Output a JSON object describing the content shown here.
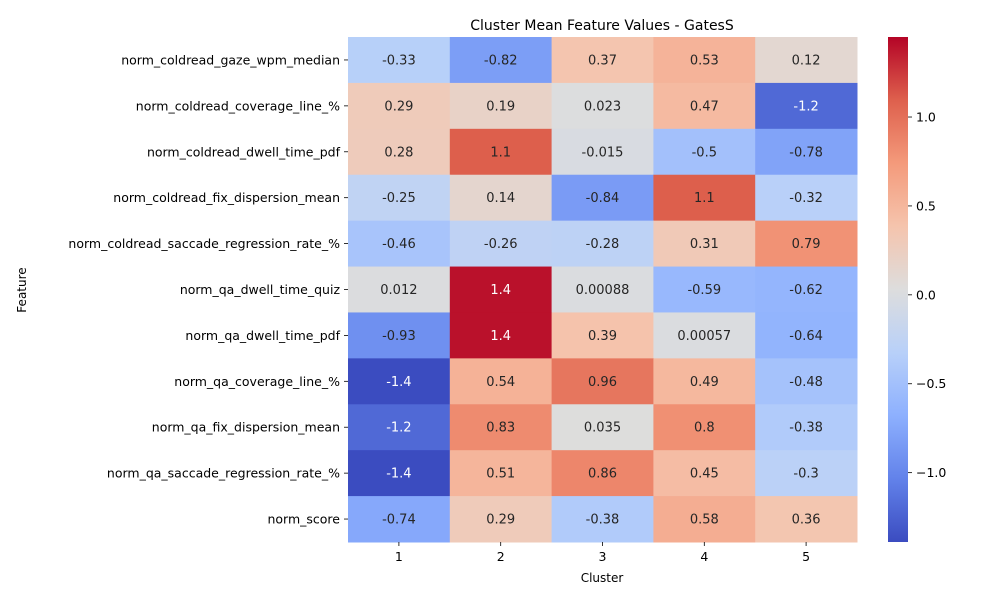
{
  "chart_data": {
    "type": "heatmap",
    "title": "Cluster Mean Feature Values - GatesS",
    "xlabel": "Cluster",
    "ylabel": "Feature",
    "x": [
      "1",
      "2",
      "3",
      "4",
      "5"
    ],
    "y": [
      "norm_coldread_gaze_wpm_median",
      "norm_coldread_coverage_line_%",
      "norm_coldread_dwell_time_pdf",
      "norm_coldread_fix_dispersion_mean",
      "norm_coldread_saccade_regression_rate_%",
      "norm_qa_dwell_time_quiz",
      "norm_qa_dwell_time_pdf",
      "norm_qa_coverage_line_%",
      "norm_qa_fix_dispersion_mean",
      "norm_qa_saccade_regression_rate_%",
      "norm_score"
    ],
    "values": [
      [
        -0.33,
        -0.82,
        0.37,
        0.53,
        0.12
      ],
      [
        0.29,
        0.19,
        0.023,
        0.47,
        -1.2
      ],
      [
        0.28,
        1.1,
        -0.015,
        -0.5,
        -0.78
      ],
      [
        -0.25,
        0.14,
        -0.84,
        1.1,
        -0.32
      ],
      [
        -0.46,
        -0.26,
        -0.28,
        0.31,
        0.79
      ],
      [
        0.012,
        1.4,
        0.00088,
        -0.59,
        -0.62
      ],
      [
        -0.93,
        1.4,
        0.39,
        0.00057,
        -0.64
      ],
      [
        -1.4,
        0.54,
        0.96,
        0.49,
        -0.48
      ],
      [
        -1.2,
        0.83,
        0.035,
        0.8,
        -0.38
      ],
      [
        -1.4,
        0.51,
        0.86,
        0.45,
        -0.3
      ],
      [
        -0.74,
        0.29,
        -0.38,
        0.58,
        0.36
      ]
    ],
    "cell_labels": [
      [
        "-0.33",
        "-0.82",
        "0.37",
        "0.53",
        "0.12"
      ],
      [
        "0.29",
        "0.19",
        "0.023",
        "0.47",
        "-1.2"
      ],
      [
        "0.28",
        "1.1",
        "-0.015",
        "-0.5",
        "-0.78"
      ],
      [
        "-0.25",
        "0.14",
        "-0.84",
        "1.1",
        "-0.32"
      ],
      [
        "-0.46",
        "-0.26",
        "-0.28",
        "0.31",
        "0.79"
      ],
      [
        "0.012",
        "1.4",
        "0.00088",
        "-0.59",
        "-0.62"
      ],
      [
        "-0.93",
        "1.4",
        "0.39",
        "0.00057",
        "-0.64"
      ],
      [
        "-1.4",
        "0.54",
        "0.96",
        "0.49",
        "-0.48"
      ],
      [
        "-1.2",
        "0.83",
        "0.035",
        "0.8",
        "-0.38"
      ],
      [
        "-1.4",
        "0.51",
        "0.86",
        "0.45",
        "-0.3"
      ],
      [
        "-0.74",
        "0.29",
        "-0.38",
        "0.58",
        "0.36"
      ]
    ],
    "colormap": "coolwarm",
    "vmin": -1.39,
    "vmax": 1.45,
    "colorbar_ticks": [
      1.0,
      0.5,
      0.0,
      -0.5,
      -1.0
    ],
    "colorbar_tick_labels": [
      "1.0",
      "0.5",
      "0.0",
      "−0.5",
      "−1.0"
    ],
    "grid": false,
    "legend": "colorbar-right"
  }
}
